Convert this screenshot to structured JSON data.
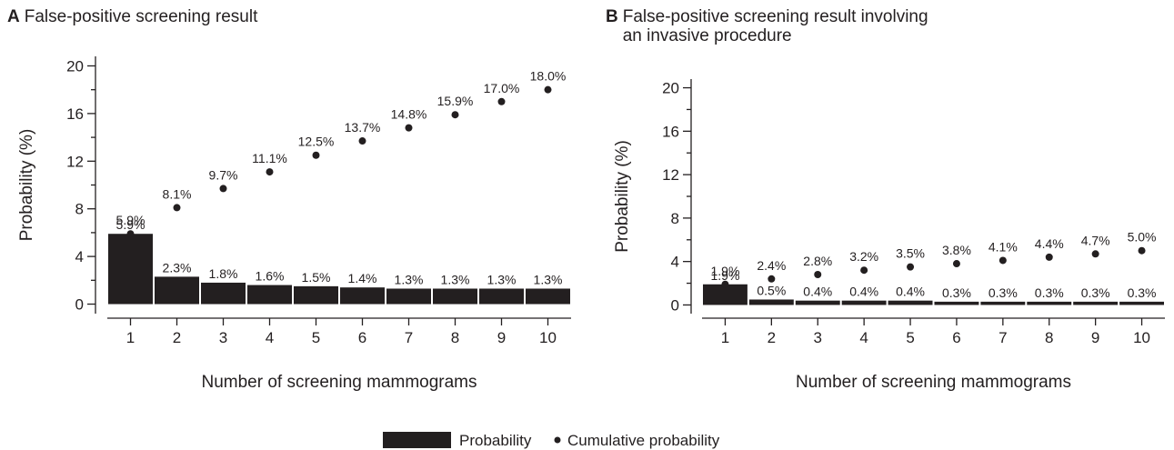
{
  "chart_data": [
    {
      "type": "bar",
      "panel": "A",
      "title": "False-positive screening result",
      "x_label": "Number of screening mammograms",
      "y_label": "Probability (%)",
      "categories": [
        "1",
        "2",
        "3",
        "4",
        "5",
        "6",
        "7",
        "8",
        "9",
        "10"
      ],
      "series": [
        {
          "name": "Probability",
          "type": "bar",
          "color": "#231f20",
          "values": [
            5.9,
            2.3,
            1.8,
            1.6,
            1.5,
            1.4,
            1.3,
            1.3,
            1.3,
            1.3
          ],
          "value_labels": [
            "5.9%",
            "2.3%",
            "1.8%",
            "1.6%",
            "1.5%",
            "1.4%",
            "1.3%",
            "1.3%",
            "1.3%",
            "1.3%"
          ]
        },
        {
          "name": "Cumulative probability",
          "type": "scatter",
          "color": "#231f20",
          "values": [
            5.9,
            8.1,
            9.7,
            11.1,
            12.5,
            13.7,
            14.8,
            15.9,
            17.0,
            18.0
          ],
          "value_labels": [
            "5.9%",
            "8.1%",
            "9.7%",
            "11.1%",
            "12.5%",
            "13.7%",
            "14.8%",
            "15.9%",
            "17.0%",
            "18.0%"
          ]
        }
      ],
      "ylim": [
        -0.8,
        20.8
      ],
      "yticks": [
        0,
        4,
        8,
        12,
        16,
        20
      ],
      "yminor": [
        2,
        6,
        10,
        14,
        18
      ]
    },
    {
      "type": "bar",
      "panel": "B",
      "title": "False-positive screening result involving an invasive procedure",
      "x_label": "Number of screening mammograms",
      "y_label": "Probability (%)",
      "categories": [
        "1",
        "2",
        "3",
        "4",
        "5",
        "6",
        "7",
        "8",
        "9",
        "10"
      ],
      "series": [
        {
          "name": "Probability",
          "type": "bar",
          "color": "#231f20",
          "values": [
            1.9,
            0.5,
            0.4,
            0.4,
            0.4,
            0.3,
            0.3,
            0.3,
            0.3,
            0.3
          ],
          "value_labels": [
            "1.9%",
            "0.5%",
            "0.4%",
            "0.4%",
            "0.4%",
            "0.3%",
            "0.3%",
            "0.3%",
            "0.3%",
            "0.3%"
          ]
        },
        {
          "name": "Cumulative probability",
          "type": "scatter",
          "color": "#231f20",
          "values": [
            1.9,
            2.4,
            2.8,
            3.2,
            3.5,
            3.8,
            4.1,
            4.4,
            4.7,
            5.0
          ],
          "value_labels": [
            "1.9%",
            "2.4%",
            "2.8%",
            "3.2%",
            "3.5%",
            "3.8%",
            "4.1%",
            "4.4%",
            "4.7%",
            "5.0%"
          ]
        }
      ],
      "ylim": [
        -0.8,
        20.8
      ],
      "yticks": [
        0,
        4,
        8,
        12,
        16,
        20
      ],
      "yminor": [
        2,
        6,
        10,
        14,
        18
      ]
    }
  ]
}
